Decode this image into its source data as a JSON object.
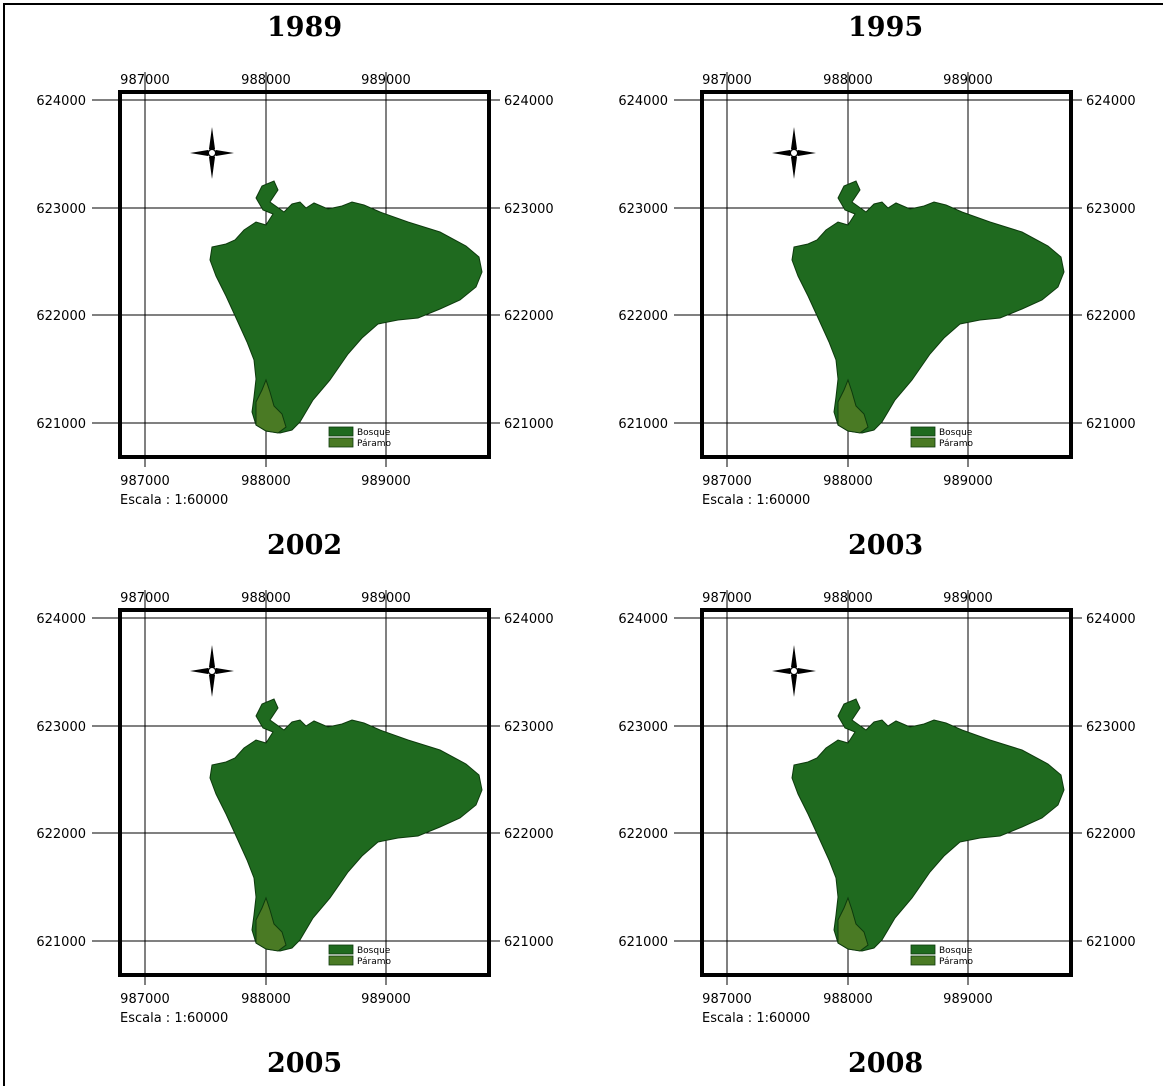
{
  "figure": {
    "legend": [
      {
        "label": "Bosque",
        "color": "#1f6a1f"
      },
      {
        "label": "Páramo",
        "color": "#4a7a24"
      }
    ],
    "scale_text": "Escala : 1:60000",
    "x_ticks": [
      "987000",
      "988000",
      "989000"
    ],
    "y_ticks": [
      "624000",
      "623000",
      "622000",
      "621000"
    ],
    "colors": {
      "grid": "#000000",
      "frame": "#000000"
    },
    "north_arrow_icon": "compass-rose-icon"
  },
  "maps": [
    {
      "year": "1989"
    },
    {
      "year": "1995"
    },
    {
      "year": "2002"
    },
    {
      "year": "2003"
    },
    {
      "year": "2005"
    },
    {
      "year": "2008"
    }
  ]
}
